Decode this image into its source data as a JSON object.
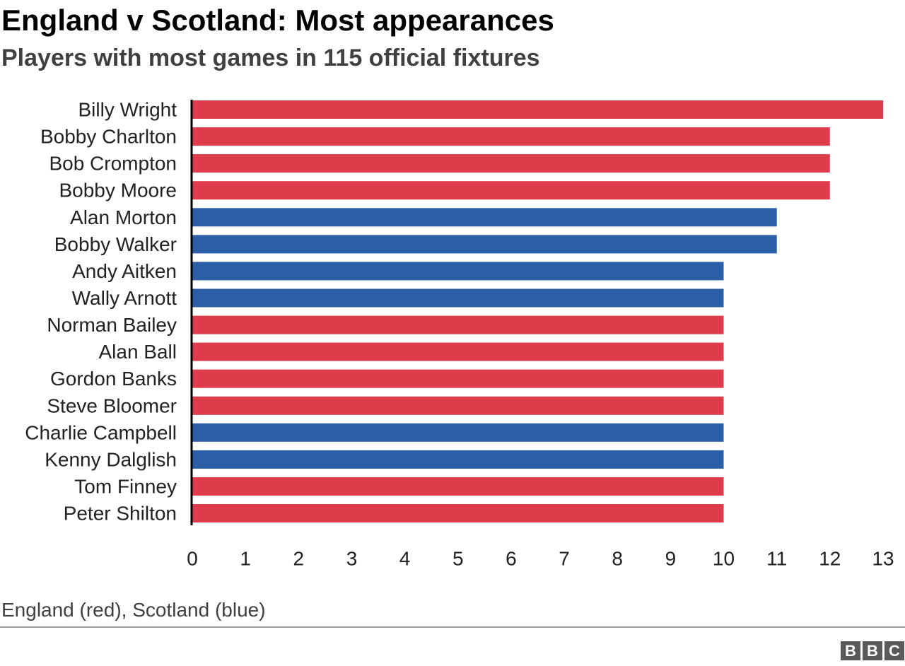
{
  "title": "England v Scotland: Most appearances",
  "subtitle": "Players with most games in 115 official fixtures",
  "footnote": "England (red), Scotland (blue)",
  "logo": [
    "B",
    "B",
    "C"
  ],
  "colors": {
    "england": "#df3c4b",
    "scotland": "#2a5ea6",
    "axis": "#000000"
  },
  "chart_data": {
    "type": "bar",
    "orientation": "horizontal",
    "title": "England v Scotland: Most appearances",
    "subtitle": "Players with most games in 115 official fixtures",
    "categories": [
      "Billy Wright",
      "Bobby Charlton",
      "Bob Crompton",
      "Bobby Moore",
      "Alan Morton",
      "Bobby Walker",
      "Andy Aitken",
      "Wally Arnott",
      "Norman Bailey",
      "Alan Ball",
      "Gordon Banks",
      "Steve Bloomer",
      "Charlie Campbell",
      "Kenny Dalglish",
      "Tom Finney",
      "Peter Shilton"
    ],
    "values": [
      13,
      12,
      12,
      12,
      11,
      11,
      10,
      10,
      10,
      10,
      10,
      10,
      10,
      10,
      10,
      10
    ],
    "teams": [
      "England",
      "England",
      "England",
      "England",
      "Scotland",
      "Scotland",
      "Scotland",
      "Scotland",
      "England",
      "England",
      "England",
      "England",
      "Scotland",
      "Scotland",
      "England",
      "England"
    ],
    "xlim": [
      0,
      13
    ],
    "xticks": [
      0,
      1,
      2,
      3,
      4,
      5,
      6,
      7,
      8,
      9,
      10,
      11,
      12,
      13
    ],
    "grid": false,
    "xlabel": "",
    "ylabel": ""
  }
}
